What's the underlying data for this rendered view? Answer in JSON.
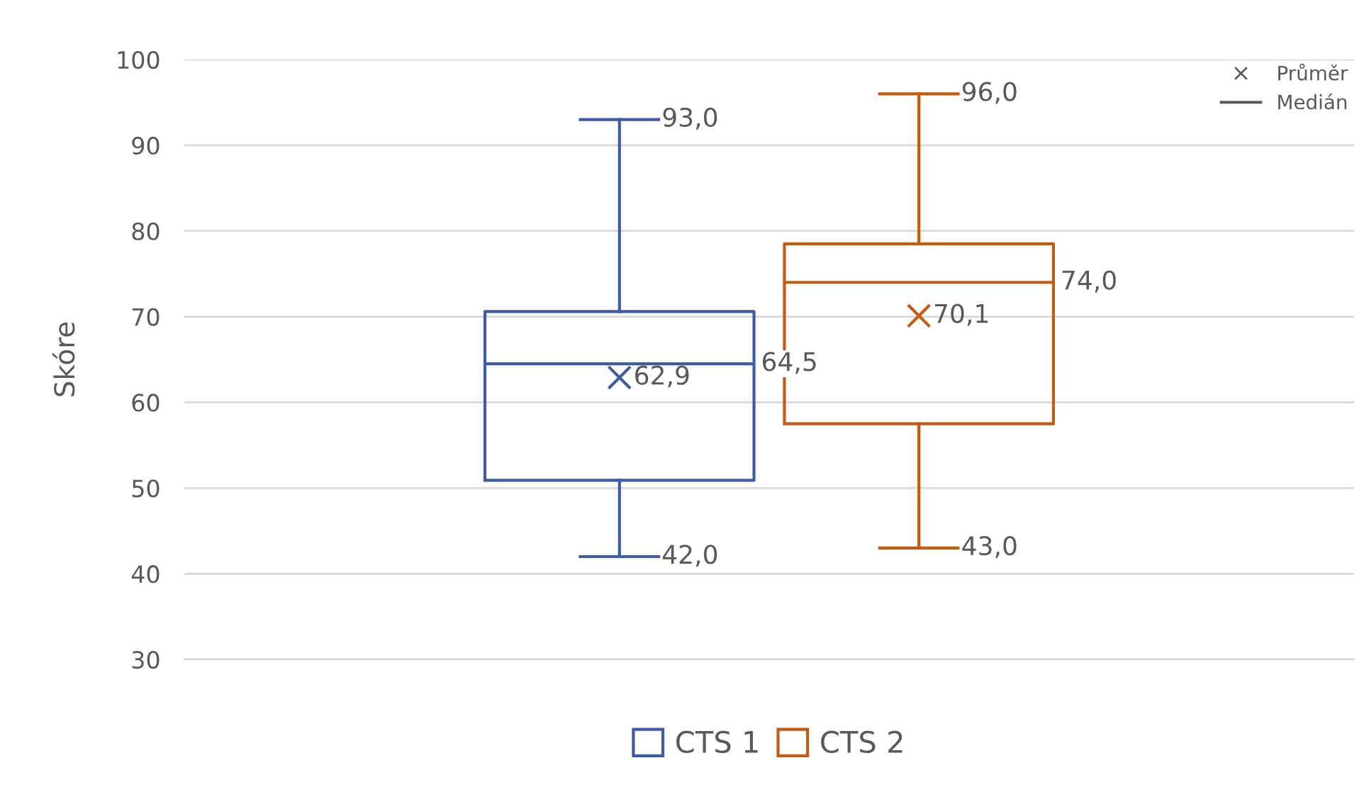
{
  "chart_data": {
    "type": "box",
    "ylabel": "Skóre",
    "categories": [
      null
    ],
    "ylim": [
      30,
      100
    ],
    "yticks": [
      30,
      40,
      50,
      60,
      70,
      80,
      90,
      100
    ],
    "grid": "y",
    "legend": "bottom",
    "series": [
      {
        "name": "CTS 1",
        "color": "#3e5ba6",
        "boxes": [
          {
            "low": 42,
            "q1": 50.9,
            "median": 64.5,
            "q3": 70.6,
            "high": 93,
            "mean": 62.9
          }
        ]
      },
      {
        "name": "CTS 2",
        "color": "#c55a11",
        "boxes": [
          {
            "low": 43,
            "q1": 57.5,
            "median": 74,
            "q3": 78.5,
            "high": 96,
            "mean": 70.1
          }
        ]
      }
    ],
    "annotations": [
      "Průměr",
      "Medián",
      "93,0",
      "42,0",
      "64,5",
      "62,9",
      "96,0",
      "43,0",
      "74,0",
      "70,1"
    ]
  }
}
